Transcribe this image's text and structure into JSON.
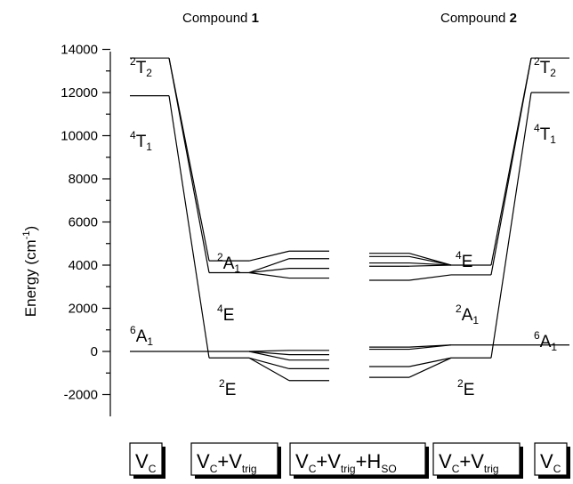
{
  "titles": {
    "c1_prefix": "Compound ",
    "c1_num": "1",
    "c2_prefix": "Compound ",
    "c2_num": "2"
  },
  "axis": {
    "ylabel_main": "Energy (cm",
    "ylabel_sup": "-1",
    "ylabel_end": ")",
    "ylim": [
      -2500,
      14500
    ],
    "ticks": [
      "14000",
      "12000",
      "10000",
      "8000",
      "6000",
      "4000",
      "2000",
      "0",
      "-2000"
    ],
    "tick_values": [
      14000,
      12000,
      10000,
      8000,
      6000,
      4000,
      2000,
      0,
      -2000
    ]
  },
  "labels": {
    "T2": {
      "base": "T",
      "sup": "2",
      "sub": "2"
    },
    "T1": {
      "base": "T",
      "sup": "4",
      "sub": "1"
    },
    "A1_quart": {
      "base": "A",
      "sup": "2",
      "sub": "1"
    },
    "E4": {
      "base": "E",
      "sup": "4"
    },
    "A1_sext": {
      "base": "A",
      "sup": "6",
      "sub": "1"
    },
    "E2": {
      "base": "E",
      "sup": "2"
    }
  },
  "boxes": [
    {
      "main": "V",
      "sub": "C"
    },
    {
      "main": "V",
      "sub": "C",
      "plus": "+V",
      "sub2": "trig"
    },
    {
      "main": "V",
      "sub": "C",
      "plus": "+V",
      "sub2": "trig",
      "plus2": "+H",
      "sub3": "SO"
    },
    {
      "main": "V",
      "sub": "C",
      "plus": "+V",
      "sub2": "trig"
    },
    {
      "main": "V",
      "sub": "C"
    }
  ],
  "chart_data": {
    "type": "diagram",
    "compound1": {
      "Vc": {
        "2T2": 13600,
        "4T1": 11850,
        "6A1": 0
      },
      "Vc+Vtrig": {
        "2A1": 4200,
        "4E": 3650,
        "6A1": 0,
        "2E": -300
      },
      "Vc+Vtrig+Hso": [
        4650,
        4300,
        3850,
        3400,
        50,
        -150,
        -400,
        -800,
        -1350
      ]
    },
    "compound2": {
      "Vc": {
        "2T2": 13600,
        "4T1": 12000,
        "6A1": 300
      },
      "Vc+Vtrig": {
        "4E": 4000,
        "2A1": 3550,
        "6A1": 300,
        "2E": -300
      },
      "Vc+Vtrig+Hso": [
        4550,
        4400,
        4100,
        3950,
        3300,
        200,
        100,
        -700,
        -1200
      ]
    }
  }
}
